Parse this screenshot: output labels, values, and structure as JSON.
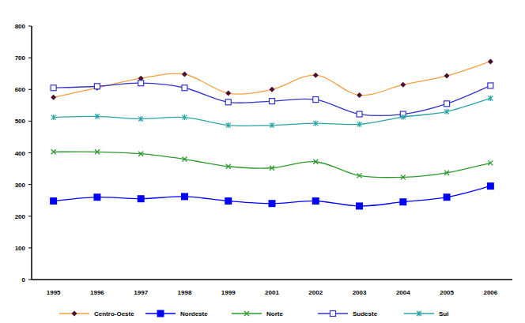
{
  "chart_data": {
    "type": "line",
    "categories": [
      "1995",
      "1996",
      "1997",
      "1998",
      "1999",
      "2001",
      "2002",
      "2003",
      "2004",
      "2005",
      "2006"
    ],
    "series": [
      {
        "name": "Centro-Oeste",
        "color": "#f4a040",
        "marker": "diamond",
        "values": [
          575,
          605,
          635,
          648,
          588,
          600,
          645,
          582,
          615,
          643,
          688
        ]
      },
      {
        "name": "Nordeste",
        "color": "#0000ff",
        "marker": "square",
        "values": [
          248,
          260,
          255,
          262,
          248,
          240,
          248,
          232,
          245,
          260,
          295
        ]
      },
      {
        "name": "Norte",
        "color": "#2e9a2e",
        "marker": "x",
        "values": [
          403,
          403,
          397,
          380,
          357,
          352,
          372,
          328,
          323,
          337,
          368
        ]
      },
      {
        "name": "Sudeste",
        "color": "#3333cc",
        "marker": "open-square",
        "values": [
          605,
          610,
          620,
          605,
          560,
          563,
          568,
          522,
          522,
          555,
          612
        ]
      },
      {
        "name": "Sul",
        "color": "#2aa6a6",
        "marker": "asterisk",
        "values": [
          512,
          515,
          507,
          512,
          487,
          487,
          493,
          490,
          513,
          530,
          572
        ]
      }
    ],
    "ylim": [
      0,
      800
    ],
    "yticks": [
      0,
      100,
      200,
      300,
      400,
      500,
      600,
      700,
      800
    ],
    "grid": false,
    "legend": "bottom"
  }
}
